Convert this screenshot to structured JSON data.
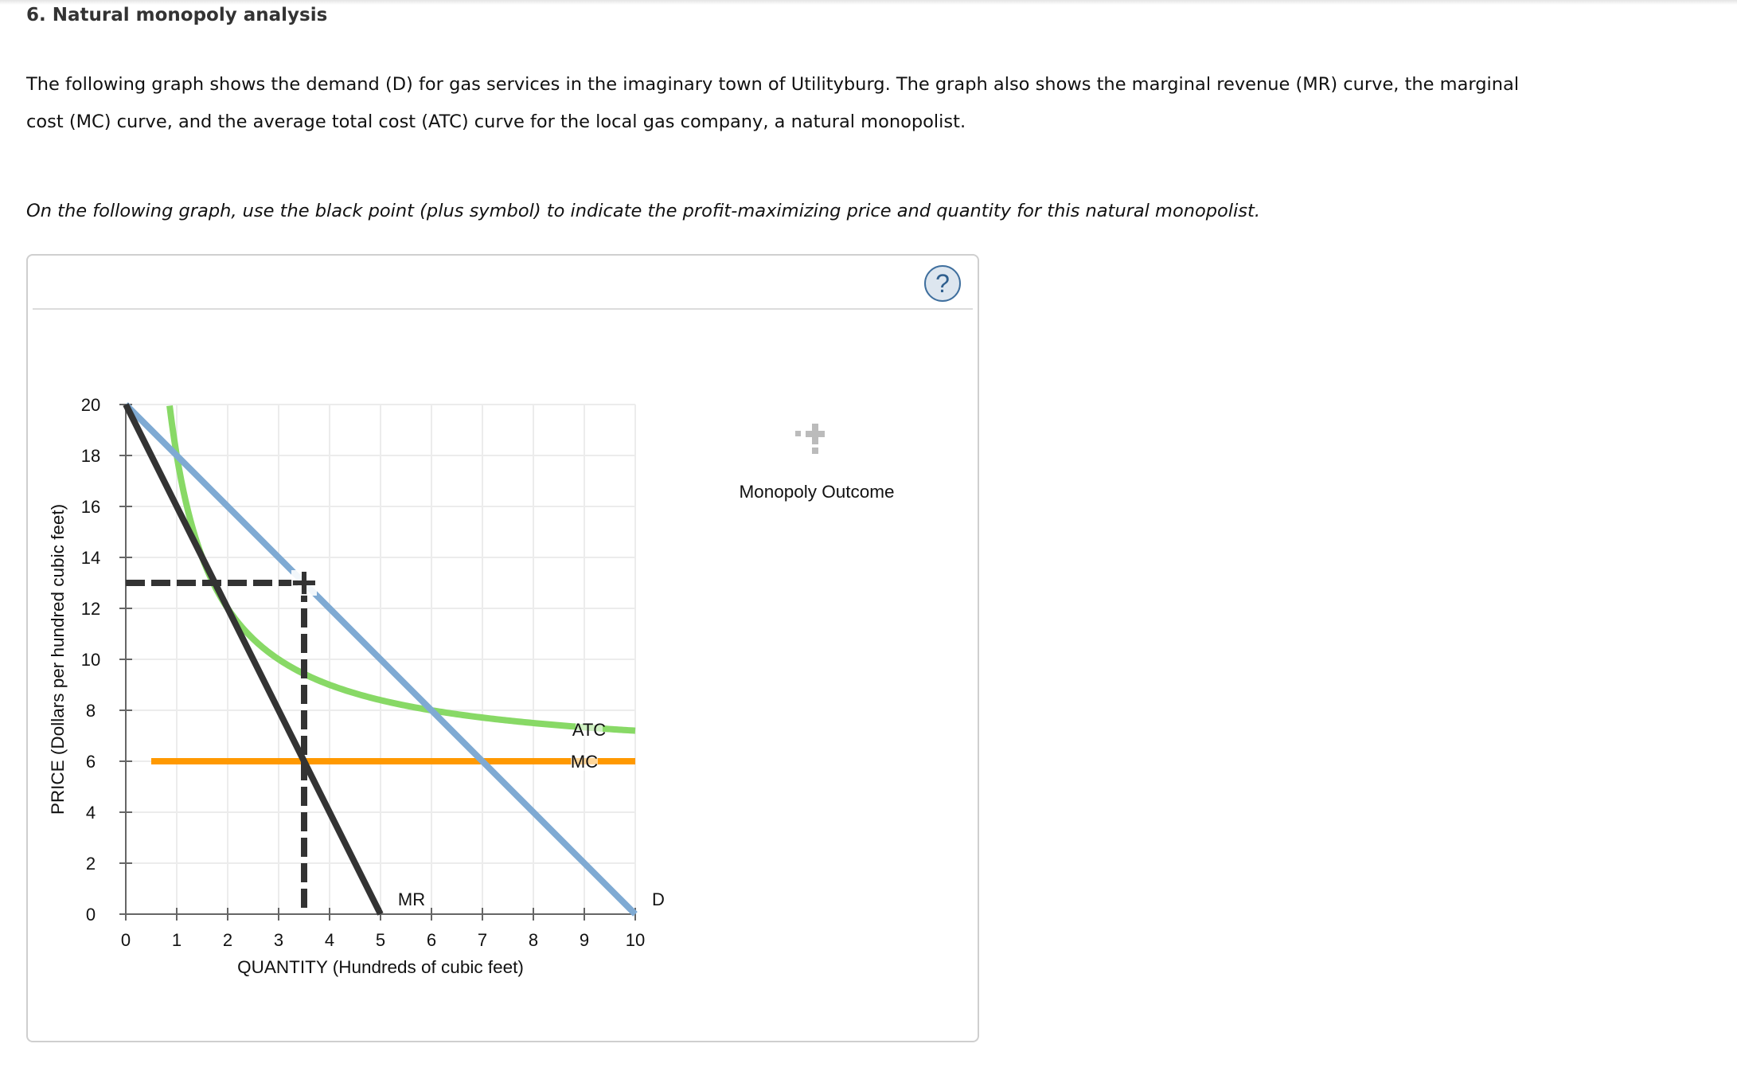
{
  "page": {
    "title": "6. Natural monopoly analysis",
    "intro": "The following graph shows the demand (D) for gas services in the imaginary town of Utilityburg. The graph also shows the marginal revenue (MR) curve, the marginal cost (MC) curve, and the average total cost (ATC) curve for the local gas company, a natural monopolist.",
    "instruction": "On the following graph, use the black point (plus symbol) to indicate the profit-maximizing price and quantity for this natural monopolist."
  },
  "graph_frame": {
    "help_icon": "question-mark-circle-icon",
    "help_label": "?"
  },
  "legend": {
    "items": [
      {
        "label": "Monopoly Outcome",
        "icon": "plus-point-icon",
        "color": "#bbbbbb"
      }
    ]
  },
  "colors": {
    "demand": "#7faad3",
    "marginal_revenue": "#333333",
    "marginal_cost": "#ff9900",
    "average_total_cost": "#88d966",
    "dashed_guides": "#333333",
    "placed_point": "#333333",
    "gridline": "#ececec",
    "axis": "#666666"
  },
  "chart_data": {
    "type": "line",
    "title": "",
    "xlabel": "QUANTITY (Hundreds of cubic feet)",
    "ylabel": "PRICE (Dollars per hundred cubic feet)",
    "xlim": [
      0,
      10
    ],
    "ylim": [
      0,
      20
    ],
    "x_ticks": [
      0,
      1,
      2,
      3,
      4,
      5,
      6,
      7,
      8,
      9,
      10
    ],
    "y_ticks": [
      0,
      2,
      4,
      6,
      8,
      10,
      12,
      14,
      16,
      18,
      20
    ],
    "grid": true,
    "legend_position": "right",
    "series": [
      {
        "name": "D",
        "label": "D",
        "points": [
          [
            0,
            20
          ],
          [
            10,
            0
          ]
        ]
      },
      {
        "name": "MR",
        "label": "MR",
        "points": [
          [
            0,
            20
          ],
          [
            5,
            0
          ]
        ]
      },
      {
        "name": "MC",
        "label": "MC",
        "points": [
          [
            0.5,
            6
          ],
          [
            10,
            6
          ]
        ]
      },
      {
        "name": "ATC",
        "label": "ATC",
        "formula": "6 + 12/q",
        "points": [
          [
            0.86,
            20
          ],
          [
            1,
            18
          ],
          [
            1.5,
            14
          ],
          [
            2,
            12
          ],
          [
            3,
            10
          ],
          [
            3.5,
            9.43
          ],
          [
            4,
            9
          ],
          [
            5,
            8.4
          ],
          [
            6,
            8
          ],
          [
            7,
            7.71
          ],
          [
            8,
            7.5
          ],
          [
            9,
            7.33
          ],
          [
            10,
            7.2
          ]
        ]
      }
    ],
    "placed_point": {
      "name": "Monopoly Outcome",
      "quantity": 3.5,
      "price": 13,
      "dashed_guides": true
    }
  }
}
